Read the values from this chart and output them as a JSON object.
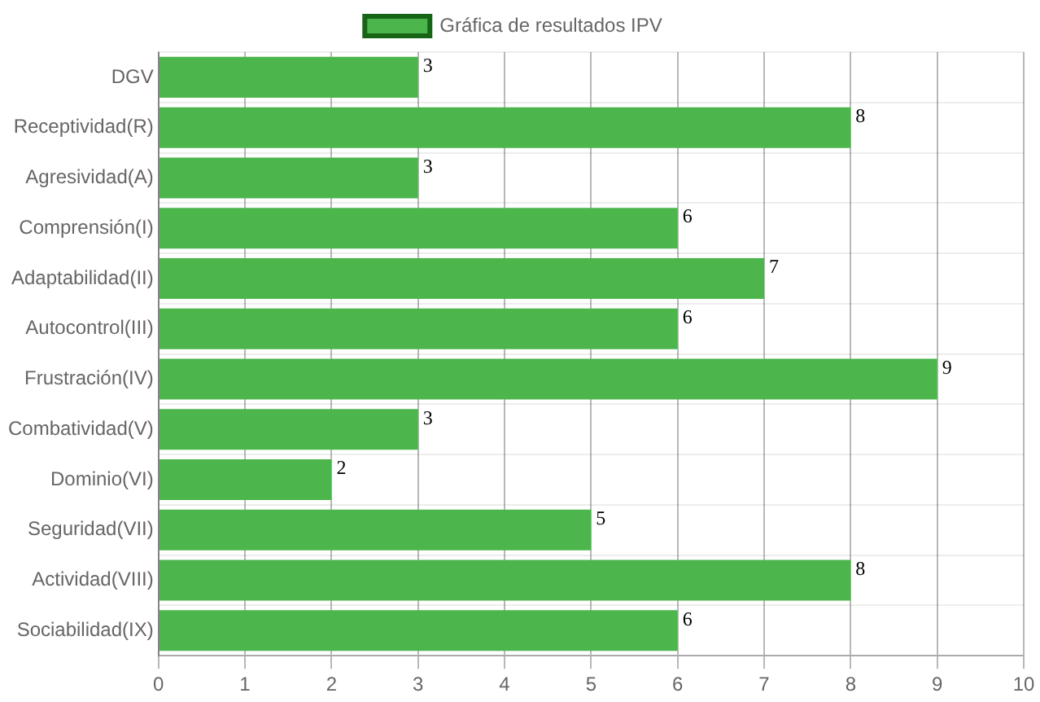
{
  "chart_data": {
    "type": "bar",
    "orientation": "horizontal",
    "categories": [
      "DGV",
      "Receptividad(R)",
      "Agresividad(A)",
      "Comprensión(I)",
      "Adaptabilidad(II)",
      "Autocontrol(III)",
      "Frustración(IV)",
      "Combatividad(V)",
      "Dominio(VI)",
      "Seguridad(VII)",
      "Actividad(VIII)",
      "Sociabilidad(IX)"
    ],
    "series": [
      {
        "name": "Gráfica de resultados IPV",
        "color": "#4cb54c",
        "values": [
          3,
          8,
          3,
          6,
          7,
          6,
          9,
          3,
          2,
          5,
          8,
          6
        ]
      }
    ],
    "xlim": [
      0,
      10
    ],
    "xticks": [
      0,
      1,
      2,
      3,
      4,
      5,
      6,
      7,
      8,
      9,
      10
    ],
    "grid": true,
    "legend": "top",
    "data_labels": true
  }
}
